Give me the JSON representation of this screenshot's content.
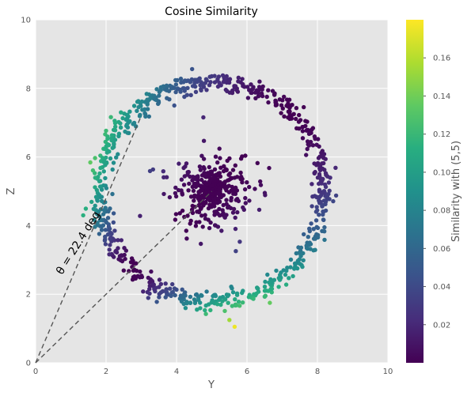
{
  "chart_data": {
    "type": "scatter",
    "title": "Cosine Similarity",
    "xlabel": "Y",
    "ylabel": "Z",
    "xlim": [
      0,
      10
    ],
    "ylim": [
      0,
      10
    ],
    "x_ticks": [
      "0",
      "2",
      "4",
      "6",
      "8",
      "10"
    ],
    "y_ticks": [
      "0",
      "2",
      "4",
      "6",
      "8",
      "10"
    ],
    "grid": true,
    "colormap": "viridis",
    "colorbar": {
      "label": "Similarity with (5,5)",
      "range": [
        0,
        0.18
      ],
      "ticks": [
        "0.02",
        "0.04",
        "0.06",
        "0.08",
        "0.10",
        "0.12",
        "0.14",
        "0.16"
      ]
    },
    "annotation": {
      "text": "θ = 22.4 deg",
      "line1": {
        "from": [
          0,
          0
        ],
        "to": [
          3.0,
          7.2
        ]
      },
      "line2": {
        "from": [
          0,
          0
        ],
        "to": [
          5.0,
          5.0
        ]
      }
    },
    "series": [
      {
        "shape": "ring",
        "center": [
          5,
          5
        ],
        "radius": 3.2,
        "approx_points": 750
      },
      {
        "shape": "cluster",
        "center": [
          5,
          5
        ],
        "radius": 1.2,
        "approx_points": 400
      }
    ],
    "outliers": [
      {
        "x": 5.5,
        "y": 1.25
      },
      {
        "x": 5.65,
        "y": 1.05
      },
      {
        "x": 6.65,
        "y": 1.75
      },
      {
        "x": 1.35,
        "y": 4.3
      }
    ]
  },
  "colors": {
    "plot_background": "#e5e5e5",
    "grid": "#ffffff",
    "dashed_line": "#555555"
  }
}
